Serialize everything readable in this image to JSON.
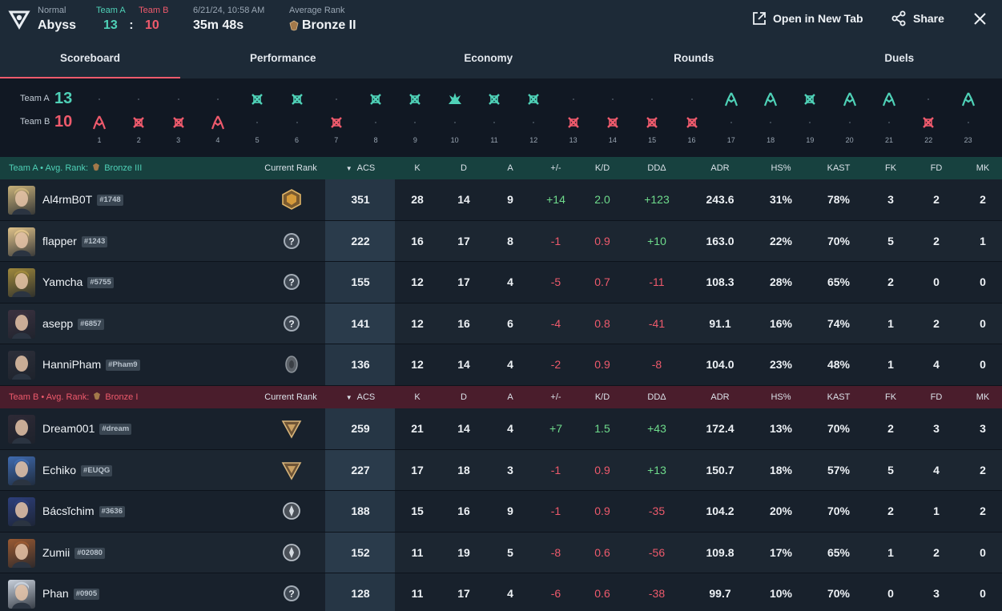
{
  "header": {
    "mode_label": "Normal",
    "map_name": "Abyss",
    "team_a_label": "Team A",
    "team_b_label": "Team B",
    "team_a_score": "13",
    "team_b_score": "10",
    "score_sep": ":",
    "date": "6/21/24, 10:58 AM",
    "duration": "35m 48s",
    "avg_rank_label": "Average Rank",
    "avg_rank_value": "Bronze II",
    "open_new_tab": "Open in New Tab",
    "share": "Share"
  },
  "tabs": [
    "Scoreboard",
    "Performance",
    "Economy",
    "Rounds",
    "Duels"
  ],
  "timeline": {
    "team_a_label": "Team A",
    "team_b_label": "Team B",
    "team_a_score": "13",
    "team_b_score": "10",
    "rounds": [
      {
        "n": "1",
        "winner": "B",
        "icon": "defuse"
      },
      {
        "n": "2",
        "winner": "B",
        "icon": "elim"
      },
      {
        "n": "3",
        "winner": "B",
        "icon": "elim"
      },
      {
        "n": "4",
        "winner": "B",
        "icon": "defuse"
      },
      {
        "n": "5",
        "winner": "A",
        "icon": "elim"
      },
      {
        "n": "6",
        "winner": "A",
        "icon": "elim"
      },
      {
        "n": "7",
        "winner": "B",
        "icon": "elim"
      },
      {
        "n": "8",
        "winner": "A",
        "icon": "elim"
      },
      {
        "n": "9",
        "winner": "A",
        "icon": "elim"
      },
      {
        "n": "10",
        "winner": "A",
        "icon": "spike"
      },
      {
        "n": "11",
        "winner": "A",
        "icon": "elim"
      },
      {
        "n": "12",
        "winner": "A",
        "icon": "elim"
      },
      {
        "n": "13",
        "winner": "B",
        "icon": "elim"
      },
      {
        "n": "14",
        "winner": "B",
        "icon": "elim"
      },
      {
        "n": "15",
        "winner": "B",
        "icon": "elim"
      },
      {
        "n": "16",
        "winner": "B",
        "icon": "elim"
      },
      {
        "n": "17",
        "winner": "A",
        "icon": "defuse"
      },
      {
        "n": "18",
        "winner": "A",
        "icon": "defuse"
      },
      {
        "n": "19",
        "winner": "A",
        "icon": "elim"
      },
      {
        "n": "20",
        "winner": "A",
        "icon": "defuse"
      },
      {
        "n": "21",
        "winner": "A",
        "icon": "defuse"
      },
      {
        "n": "22",
        "winner": "B",
        "icon": "elim"
      },
      {
        "n": "23",
        "winner": "A",
        "icon": "defuse"
      }
    ]
  },
  "columns": {
    "current_rank": "Current Rank",
    "acs": "ACS",
    "k": "K",
    "d": "D",
    "a": "A",
    "pm": "+/-",
    "kd": "K/D",
    "dd": "DDΔ",
    "adr": "ADR",
    "hs": "HS%",
    "kast": "KAST",
    "fk": "FK",
    "fd": "FD",
    "mk": "MK"
  },
  "team_a": {
    "label": "Team A",
    "avg_rank_label": "Avg. Rank:",
    "avg_rank": "Bronze III",
    "players": [
      {
        "name": "Al4rmB0T",
        "tag": "#1748",
        "rank": "bronze",
        "acs": "351",
        "k": "28",
        "d": "14",
        "a": "9",
        "pm": "+14",
        "kd": "2.0",
        "dd": "+123",
        "adr": "243.6",
        "hs": "31%",
        "kast": "78%",
        "fk": "3",
        "fd": "2",
        "mk": "2",
        "color": "#c9b27a"
      },
      {
        "name": "flapper",
        "tag": "#1243",
        "rank": "unranked",
        "acs": "222",
        "k": "16",
        "d": "17",
        "a": "8",
        "pm": "-1",
        "kd": "0.9",
        "dd": "+10",
        "adr": "163.0",
        "hs": "22%",
        "kast": "70%",
        "fk": "5",
        "fd": "2",
        "mk": "1",
        "color": "#e0c38a"
      },
      {
        "name": "Yamcha",
        "tag": "#5755",
        "rank": "unranked",
        "acs": "155",
        "k": "12",
        "d": "17",
        "a": "4",
        "pm": "-5",
        "kd": "0.7",
        "dd": "-11",
        "adr": "108.3",
        "hs": "28%",
        "kast": "65%",
        "fk": "2",
        "fd": "0",
        "mk": "0",
        "color": "#a0893c"
      },
      {
        "name": "asepp",
        "tag": "#6857",
        "rank": "unranked",
        "acs": "141",
        "k": "12",
        "d": "16",
        "a": "6",
        "pm": "-4",
        "kd": "0.8",
        "dd": "-41",
        "adr": "91.1",
        "hs": "16%",
        "kast": "74%",
        "fk": "1",
        "fd": "2",
        "mk": "0",
        "color": "#3b3240"
      },
      {
        "name": "HanniPham",
        "tag": "#Pham9",
        "rank": "iron",
        "acs": "136",
        "k": "12",
        "d": "14",
        "a": "4",
        "pm": "-2",
        "kd": "0.9",
        "dd": "-8",
        "adr": "104.0",
        "hs": "23%",
        "kast": "48%",
        "fk": "1",
        "fd": "4",
        "mk": "0",
        "color": "#2d2f3a"
      }
    ]
  },
  "team_b": {
    "label": "Team B",
    "avg_rank_label": "Avg. Rank:",
    "avg_rank": "Bronze I",
    "players": [
      {
        "name": "Dream001",
        "tag": "#dream",
        "rank": "bronze2",
        "acs": "259",
        "k": "21",
        "d": "14",
        "a": "4",
        "pm": "+7",
        "kd": "1.5",
        "dd": "+43",
        "adr": "172.4",
        "hs": "13%",
        "kast": "70%",
        "fk": "2",
        "fd": "3",
        "mk": "3",
        "color": "#2e2a36"
      },
      {
        "name": "Echiko",
        "tag": "#EUQG",
        "rank": "bronze2",
        "acs": "227",
        "k": "17",
        "d": "18",
        "a": "3",
        "pm": "-1",
        "kd": "0.9",
        "dd": "+13",
        "adr": "150.7",
        "hs": "18%",
        "kast": "57%",
        "fk": "5",
        "fd": "4",
        "mk": "2",
        "color": "#3f6bb0"
      },
      {
        "name": "Bácsĭchim",
        "tag": "#3636",
        "rank": "iron2",
        "acs": "188",
        "k": "15",
        "d": "16",
        "a": "9",
        "pm": "-1",
        "kd": "0.9",
        "dd": "-35",
        "adr": "104.2",
        "hs": "20%",
        "kast": "70%",
        "fk": "2",
        "fd": "1",
        "mk": "2",
        "color": "#2d3f7c"
      },
      {
        "name": "Zumii",
        "tag": "#02080",
        "rank": "iron2",
        "acs": "152",
        "k": "11",
        "d": "19",
        "a": "5",
        "pm": "-8",
        "kd": "0.6",
        "dd": "-56",
        "adr": "109.8",
        "hs": "17%",
        "kast": "65%",
        "fk": "1",
        "fd": "2",
        "mk": "0",
        "color": "#9a5a32"
      },
      {
        "name": "Phan",
        "tag": "#0905",
        "rank": "unranked",
        "acs": "128",
        "k": "11",
        "d": "17",
        "a": "4",
        "pm": "-6",
        "kd": "0.6",
        "dd": "-38",
        "adr": "99.7",
        "hs": "10%",
        "kast": "70%",
        "fk": "0",
        "fd": "3",
        "mk": "0",
        "color": "#c9d1dc"
      }
    ]
  },
  "colors": {
    "team_a": "#4fd1b7",
    "team_b": "#ee5a6c",
    "positive": "#6fdc8c",
    "negative": "#ee5a6c"
  }
}
